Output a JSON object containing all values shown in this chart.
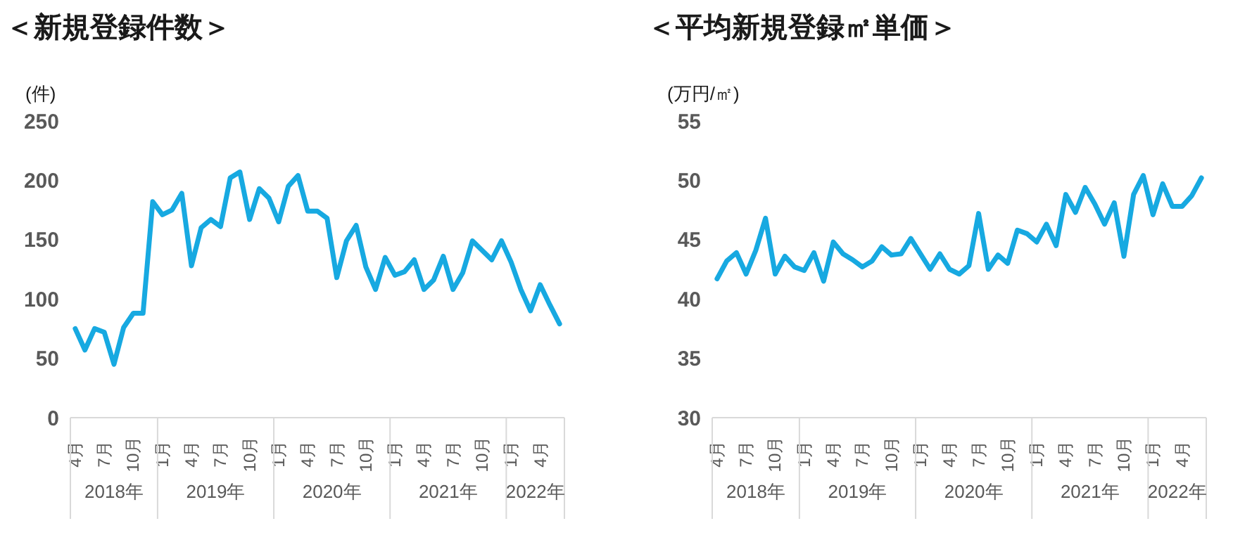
{
  "chart_data": [
    {
      "type": "line",
      "title": "＜新規登録件数＞",
      "ylabel": "(件)",
      "x": [
        "2018-04",
        "2018-05",
        "2018-06",
        "2018-07",
        "2018-08",
        "2018-09",
        "2018-10",
        "2018-11",
        "2018-12",
        "2019-01",
        "2019-02",
        "2019-03",
        "2019-04",
        "2019-05",
        "2019-06",
        "2019-07",
        "2019-08",
        "2019-09",
        "2019-10",
        "2019-11",
        "2019-12",
        "2020-01",
        "2020-02",
        "2020-03",
        "2020-04",
        "2020-05",
        "2020-06",
        "2020-07",
        "2020-08",
        "2020-09",
        "2020-10",
        "2020-11",
        "2020-12",
        "2021-01",
        "2021-02",
        "2021-03",
        "2021-04",
        "2021-05",
        "2021-06",
        "2021-07",
        "2021-08",
        "2021-09",
        "2021-10",
        "2021-11",
        "2021-12",
        "2022-01",
        "2022-02",
        "2022-03",
        "2022-04",
        "2022-05",
        "2022-06"
      ],
      "xlim": [
        "2018-04",
        "2022-06"
      ],
      "xticks": [
        {
          "value": "2018-04",
          "label": "4月"
        },
        {
          "value": "2018-07",
          "label": "7月"
        },
        {
          "value": "2018-10",
          "label": "10月"
        },
        {
          "value": "2019-01",
          "label": "1月"
        },
        {
          "value": "2019-04",
          "label": "4月"
        },
        {
          "value": "2019-07",
          "label": "7月"
        },
        {
          "value": "2019-10",
          "label": "10月"
        },
        {
          "value": "2020-01",
          "label": "1月"
        },
        {
          "value": "2020-04",
          "label": "4月"
        },
        {
          "value": "2020-07",
          "label": "7月"
        },
        {
          "value": "2020-10",
          "label": "10月"
        },
        {
          "value": "2021-01",
          "label": "1月"
        },
        {
          "value": "2021-04",
          "label": "4月"
        },
        {
          "value": "2021-07",
          "label": "7月"
        },
        {
          "value": "2021-10",
          "label": "10月"
        },
        {
          "value": "2022-01",
          "label": "1月"
        },
        {
          "value": "2022-04",
          "label": "4月"
        }
      ],
      "annotations": [
        "2018年",
        "2019年",
        "2020年",
        "2021年",
        "2022年"
      ],
      "series": [
        {
          "color": "#17a9e1",
          "values": [
            75,
            57,
            75,
            72,
            45,
            76,
            88,
            88,
            182,
            171,
            175,
            189,
            128,
            160,
            167,
            161,
            202,
            207,
            167,
            193,
            185,
            165,
            195,
            204,
            174,
            174,
            168,
            118,
            149,
            162,
            127,
            108,
            135,
            120,
            123,
            133,
            108,
            116,
            136,
            108,
            122,
            149,
            141,
            133,
            149,
            131,
            108,
            90,
            112,
            95,
            79
          ]
        }
      ],
      "ylim": [
        0,
        250
      ],
      "yticks": [
        0,
        50,
        100,
        150,
        200,
        250
      ],
      "grid": false,
      "marker": "none"
    },
    {
      "type": "line",
      "title": "＜平均新規登録㎡単価＞",
      "ylabel": "(万円/㎡)",
      "x": [
        "2018-04",
        "2018-05",
        "2018-06",
        "2018-07",
        "2018-08",
        "2018-09",
        "2018-10",
        "2018-11",
        "2018-12",
        "2019-01",
        "2019-02",
        "2019-03",
        "2019-04",
        "2019-05",
        "2019-06",
        "2019-07",
        "2019-08",
        "2019-09",
        "2019-10",
        "2019-11",
        "2019-12",
        "2020-01",
        "2020-02",
        "2020-03",
        "2020-04",
        "2020-05",
        "2020-06",
        "2020-07",
        "2020-08",
        "2020-09",
        "2020-10",
        "2020-11",
        "2020-12",
        "2021-01",
        "2021-02",
        "2021-03",
        "2021-04",
        "2021-05",
        "2021-06",
        "2021-07",
        "2021-08",
        "2021-09",
        "2021-10",
        "2021-11",
        "2021-12",
        "2022-01",
        "2022-02",
        "2022-03",
        "2022-04",
        "2022-05",
        "2022-06"
      ],
      "xlim": [
        "2018-04",
        "2022-06"
      ],
      "xticks": [
        {
          "value": "2018-04",
          "label": "4月"
        },
        {
          "value": "2018-07",
          "label": "7月"
        },
        {
          "value": "2018-10",
          "label": "10月"
        },
        {
          "value": "2019-01",
          "label": "1月"
        },
        {
          "value": "2019-04",
          "label": "4月"
        },
        {
          "value": "2019-07",
          "label": "7月"
        },
        {
          "value": "2019-10",
          "label": "10月"
        },
        {
          "value": "2020-01",
          "label": "1月"
        },
        {
          "value": "2020-04",
          "label": "4月"
        },
        {
          "value": "2020-07",
          "label": "7月"
        },
        {
          "value": "2020-10",
          "label": "10月"
        },
        {
          "value": "2021-01",
          "label": "1月"
        },
        {
          "value": "2021-04",
          "label": "4月"
        },
        {
          "value": "2021-07",
          "label": "7月"
        },
        {
          "value": "2021-10",
          "label": "10月"
        },
        {
          "value": "2022-01",
          "label": "1月"
        },
        {
          "value": "2022-04",
          "label": "4月"
        }
      ],
      "annotations": [
        "2018年",
        "2019年",
        "2020年",
        "2021年",
        "2022年"
      ],
      "series": [
        {
          "color": "#17a9e1",
          "values": [
            41.7,
            43.2,
            43.9,
            42.1,
            44.1,
            46.8,
            42.1,
            43.6,
            42.7,
            42.4,
            43.9,
            41.5,
            44.8,
            43.8,
            43.3,
            42.7,
            43.2,
            44.4,
            43.7,
            43.8,
            45.1,
            43.8,
            42.5,
            43.8,
            42.5,
            42.1,
            42.8,
            47.2,
            42.5,
            43.7,
            43.0,
            45.8,
            45.5,
            44.8,
            46.3,
            44.5,
            48.8,
            47.3,
            49.4,
            48.0,
            46.3,
            48.1,
            43.6,
            48.8,
            50.4,
            47.1,
            49.7,
            47.8,
            47.8,
            48.7,
            50.2
          ]
        }
      ],
      "ylim": [
        30,
        55
      ],
      "yticks": [
        30,
        35,
        40,
        45,
        50,
        55
      ],
      "grid": false,
      "marker": "none"
    }
  ]
}
